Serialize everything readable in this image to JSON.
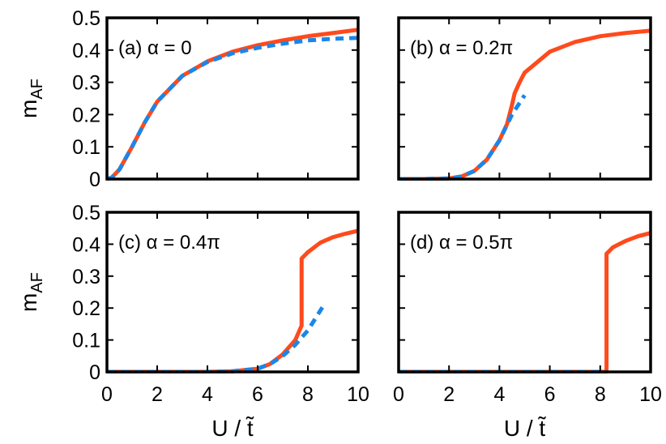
{
  "colors": {
    "solid": "#ff4a1c",
    "dashed": "#1b86e8",
    "frame": "#000000"
  },
  "chart_data": [
    {
      "type": "line",
      "panel": "a",
      "label": "(a) α = 0",
      "xlabel": "",
      "ylabel": "m_AF",
      "xlim": [
        0,
        10
      ],
      "ylim": [
        0,
        0.5
      ],
      "x_ticks": [],
      "y_ticks": [
        "0",
        "0.1",
        "0.2",
        "0.3",
        "0.4",
        "0.5"
      ],
      "series": [
        {
          "style": "solid",
          "x": [
            0,
            0.2,
            0.5,
            1,
            1.5,
            2,
            3,
            4,
            5,
            6,
            7,
            8,
            9,
            10
          ],
          "y": [
            0,
            0.005,
            0.03,
            0.1,
            0.175,
            0.24,
            0.32,
            0.365,
            0.395,
            0.415,
            0.43,
            0.443,
            0.453,
            0.463
          ]
        },
        {
          "style": "dashed",
          "x": [
            0,
            0.2,
            0.5,
            1,
            1.5,
            2,
            3,
            4,
            5,
            6,
            7,
            8,
            9,
            10
          ],
          "y": [
            0,
            0.005,
            0.03,
            0.1,
            0.175,
            0.24,
            0.32,
            0.363,
            0.39,
            0.407,
            0.42,
            0.43,
            0.435,
            0.438
          ]
        }
      ]
    },
    {
      "type": "line",
      "panel": "b",
      "label": "(b) α = 0.2π",
      "xlabel": "",
      "ylabel": "",
      "xlim": [
        0,
        10
      ],
      "ylim": [
        0,
        0.5
      ],
      "x_ticks": [],
      "y_ticks": [],
      "series": [
        {
          "style": "solid",
          "x": [
            0,
            1,
            2,
            2.5,
            3,
            3.5,
            4,
            4.3,
            4.5,
            4.6,
            4.8,
            5,
            6,
            7,
            8,
            9,
            10
          ],
          "y": [
            0,
            0,
            0.002,
            0.008,
            0.025,
            0.06,
            0.12,
            0.17,
            0.23,
            0.265,
            0.3,
            0.33,
            0.395,
            0.425,
            0.443,
            0.453,
            0.46
          ]
        },
        {
          "style": "dashed",
          "x": [
            0,
            1,
            2,
            2.5,
            3,
            3.5,
            4,
            4.5,
            5.0
          ],
          "y": [
            0,
            0,
            0.002,
            0.008,
            0.025,
            0.06,
            0.12,
            0.2,
            0.26
          ]
        }
      ]
    },
    {
      "type": "line",
      "panel": "c",
      "label": "(c) α = 0.4π",
      "xlabel": "U / t̃",
      "ylabel": "m_AF",
      "xlim": [
        0,
        10
      ],
      "ylim": [
        0,
        0.5
      ],
      "x_ticks": [
        "0",
        "2",
        "4",
        "6",
        "8",
        "10"
      ],
      "y_ticks": [
        "0",
        "0.1",
        "0.2",
        "0.3",
        "0.4",
        "0.5"
      ],
      "series": [
        {
          "style": "solid",
          "x": [
            0,
            4,
            5,
            6,
            6.5,
            7,
            7.5,
            7.75,
            7.75,
            8,
            8.5,
            9,
            9.5,
            10
          ],
          "y": [
            0,
            0,
            0.002,
            0.01,
            0.025,
            0.055,
            0.1,
            0.145,
            0.355,
            0.375,
            0.405,
            0.422,
            0.433,
            0.442
          ]
        },
        {
          "style": "dashed",
          "x": [
            0,
            4,
            5,
            6,
            6.5,
            7,
            7.5,
            8,
            8.6
          ],
          "y": [
            0,
            0,
            0.002,
            0.01,
            0.025,
            0.05,
            0.085,
            0.13,
            0.205
          ]
        }
      ]
    },
    {
      "type": "line",
      "panel": "d",
      "label": "(d) α = 0.5π",
      "xlabel": "U / t̃",
      "ylabel": "",
      "xlim": [
        0,
        10
      ],
      "ylim": [
        0,
        0.5
      ],
      "x_ticks": [
        "0",
        "2",
        "4",
        "6",
        "8",
        "10"
      ],
      "y_ticks": [],
      "series": [
        {
          "style": "solid",
          "x": [
            0,
            8.25,
            8.25,
            8.5,
            9,
            9.5,
            10
          ],
          "y": [
            0,
            0,
            0.37,
            0.39,
            0.41,
            0.425,
            0.435
          ]
        },
        {
          "style": "dashed",
          "x": [
            0,
            8.25
          ],
          "y": [
            0,
            0
          ]
        }
      ]
    }
  ]
}
